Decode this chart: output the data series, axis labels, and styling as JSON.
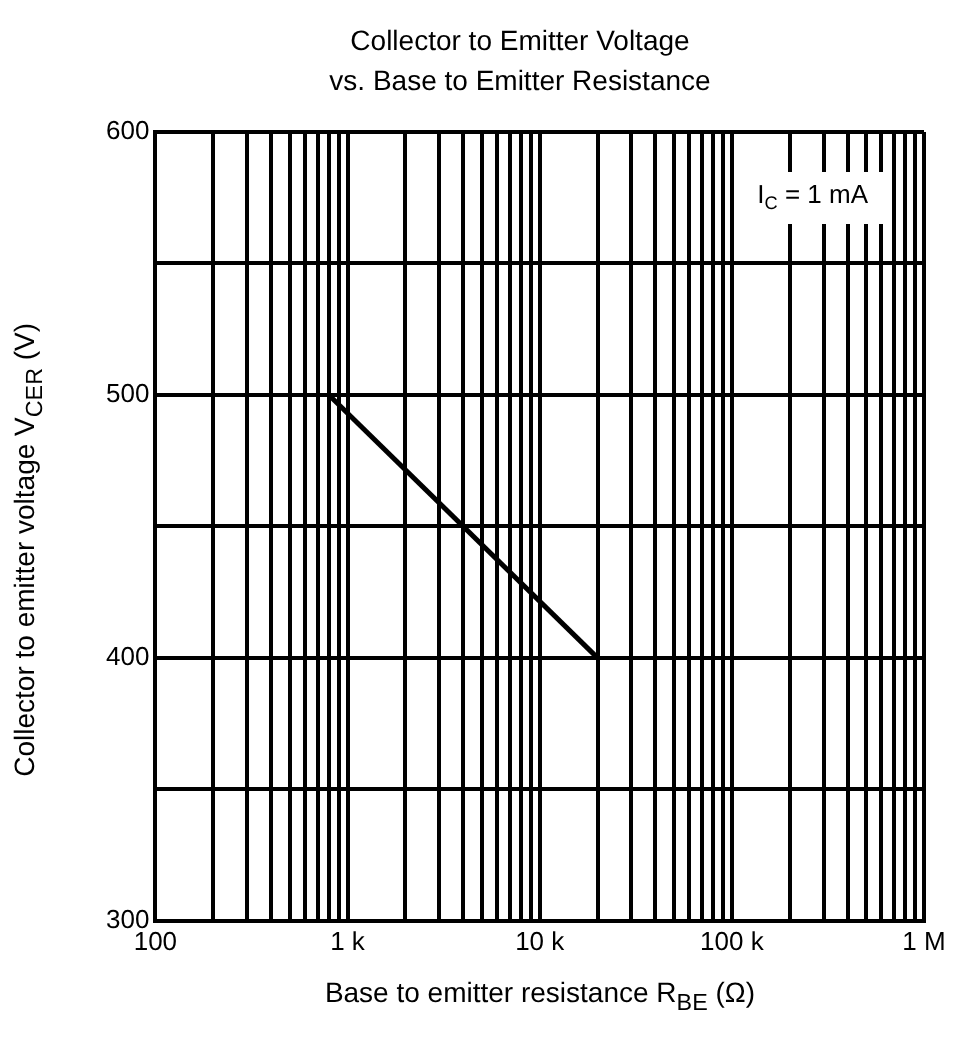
{
  "chart_data": {
    "type": "line",
    "title": "Collector to Emitter Voltage\nvs. Base to Emitter Resistance",
    "xlabel": "Base to emitter resistance  R$_{BE}$  (Ω)",
    "ylabel": "Collector to emitter voltage  V$_{CER}$  (V)",
    "annotations": [
      "I$_{C}$ = 1 mA"
    ],
    "x": [
      800,
      20000
    ],
    "series": [
      {
        "color": "#000000",
        "values": [
          500,
          400
        ]
      }
    ],
    "log": "x",
    "xlim": [
      100,
      1000000
    ],
    "ylim": [
      300,
      600
    ],
    "xticks": [
      {
        "value": 100,
        "label": "100"
      },
      {
        "value": 200,
        "label": null
      },
      {
        "value": 300,
        "label": null
      },
      {
        "value": 400,
        "label": null
      },
      {
        "value": 500,
        "label": null
      },
      {
        "value": 600,
        "label": null
      },
      {
        "value": 700,
        "label": null
      },
      {
        "value": 800,
        "label": null
      },
      {
        "value": 900,
        "label": null
      },
      {
        "value": 1000,
        "label": "1 k"
      },
      {
        "value": 2000,
        "label": null
      },
      {
        "value": 3000,
        "label": null
      },
      {
        "value": 4000,
        "label": null
      },
      {
        "value": 5000,
        "label": null
      },
      {
        "value": 6000,
        "label": null
      },
      {
        "value": 7000,
        "label": null
      },
      {
        "value": 8000,
        "label": null
      },
      {
        "value": 9000,
        "label": null
      },
      {
        "value": 10000,
        "label": "10 k"
      },
      {
        "value": 20000,
        "label": null
      },
      {
        "value": 30000,
        "label": null
      },
      {
        "value": 40000,
        "label": null
      },
      {
        "value": 50000,
        "label": null
      },
      {
        "value": 60000,
        "label": null
      },
      {
        "value": 70000,
        "label": null
      },
      {
        "value": 80000,
        "label": null
      },
      {
        "value": 90000,
        "label": null
      },
      {
        "value": 100000,
        "label": "100 k"
      },
      {
        "value": 200000,
        "label": null
      },
      {
        "value": 300000,
        "label": null
      },
      {
        "value": 400000,
        "label": null
      },
      {
        "value": 500000,
        "label": null
      },
      {
        "value": 600000,
        "label": null
      },
      {
        "value": 700000,
        "label": null
      },
      {
        "value": 800000,
        "label": null
      },
      {
        "value": 900000,
        "label": null
      },
      {
        "value": 1000000,
        "label": "1 M"
      }
    ],
    "yticks": [
      300,
      {
        "value": 350,
        "label": null
      },
      400,
      {
        "value": 450,
        "label": null
      },
      500,
      {
        "value": 550,
        "label": null
      },
      600
    ],
    "grid": true,
    "legend": false,
    "marker": "none",
    "line_style": "solid"
  }
}
